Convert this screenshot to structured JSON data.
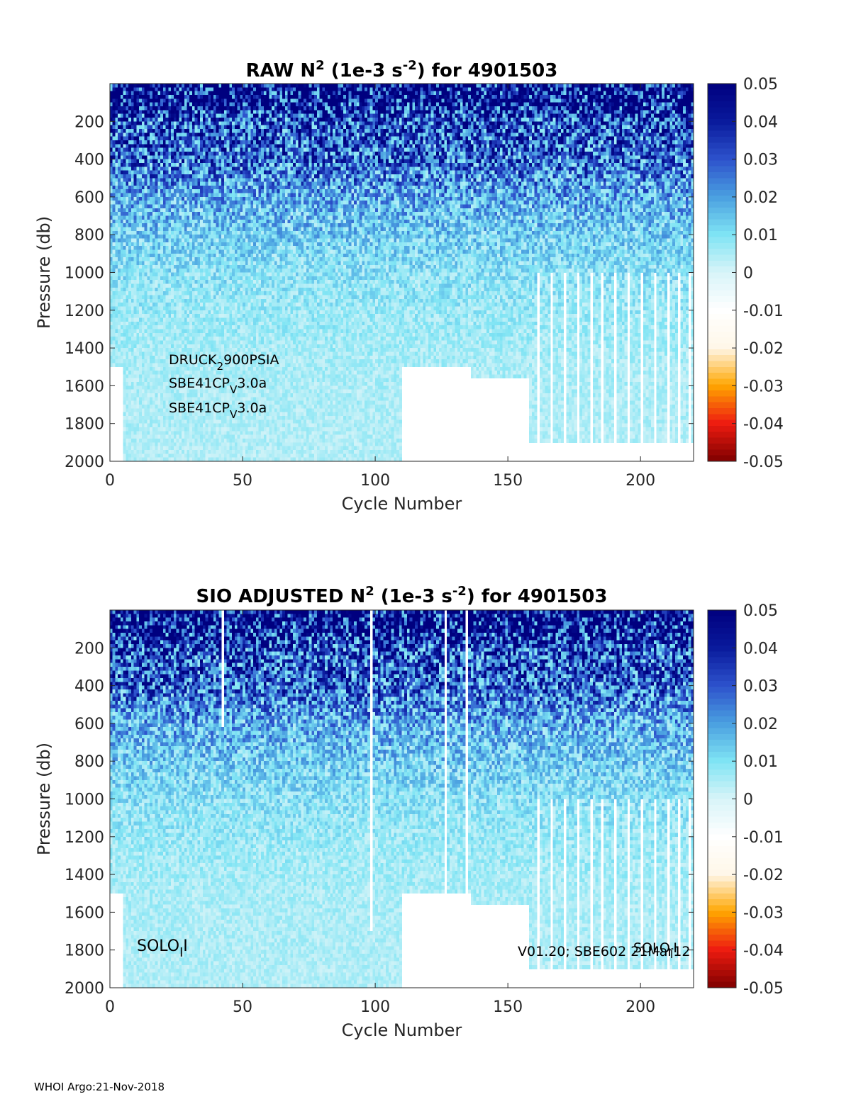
{
  "page": {
    "footer": "WHOI Argo:21-Nov-2018"
  },
  "colormap": {
    "stops": [
      "#7f0000",
      "#ee1b10",
      "#ffa600",
      "#fff7e8",
      "#ffffff",
      "#d8f4f8",
      "#7fe4f4",
      "#4a9fe0",
      "#2d52cc",
      "#091a9c",
      "#00007f"
    ]
  },
  "chart_data": [
    {
      "type": "heatmap",
      "title": "RAW N² (1e-3 s⁻²) for 4901503",
      "title_parts": {
        "pre": "RAW N",
        "sup1": "2",
        "mid": " (1e-3 s",
        "sup2": "-2",
        "post": ") for 4901503"
      },
      "xlabel": "Cycle Number",
      "ylabel": "Pressure (db)",
      "xlim": [
        0,
        220
      ],
      "ylim": [
        2000,
        0
      ],
      "x_ticks": [
        0,
        50,
        100,
        150,
        200
      ],
      "y_ticks": [
        200,
        400,
        600,
        800,
        1000,
        1200,
        1400,
        1600,
        1800,
        2000
      ],
      "colorbar": {
        "clim": [
          -0.05,
          0.05
        ],
        "ticks": [
          "0.05",
          "0.04",
          "0.03",
          "0.02",
          "0.01",
          "0",
          "-0.01",
          "-0.02",
          "-0.03",
          "-0.04",
          "-0.05"
        ]
      },
      "annotations": [
        {
          "base": "DRUCK",
          "sub": "2",
          "rest": "900PSIA"
        },
        {
          "base": "SBE41CP",
          "sub": "V",
          "rest": "3.0a"
        },
        {
          "base": "SBE41CP",
          "sub": "V",
          "rest": "3.0a"
        }
      ],
      "mean_profile": {
        "pressure": [
          0,
          100,
          200,
          400,
          600,
          800,
          1000,
          1200,
          1500,
          2000
        ],
        "n2": [
          0.052,
          0.048,
          0.032,
          0.028,
          0.018,
          0.013,
          0.009,
          0.007,
          0.005,
          0.004
        ]
      },
      "max_pressure_by_cycle_range": [
        {
          "cycles": [
            0,
            4
          ],
          "max_pressure": 1500
        },
        {
          "cycles": [
            5,
            109
          ],
          "max_pressure": 2000
        },
        {
          "cycles": [
            110,
            135
          ],
          "max_pressure": 1500
        },
        {
          "cycles": [
            136,
            157
          ],
          "max_pressure": 1550
        },
        {
          "cycles": [
            158,
            220
          ],
          "max_pressure": 1900
        }
      ],
      "gap_cycles_below_1000db": [
        161,
        166,
        171,
        176,
        181,
        185,
        190,
        195,
        200,
        205,
        210,
        214,
        218
      ]
    },
    {
      "type": "heatmap",
      "title": "SIO ADJUSTED N² (1e-3 s⁻²) for 4901503",
      "title_parts": {
        "pre": "SIO  ADJUSTED N",
        "sup1": "2",
        "mid": " (1e-3 s",
        "sup2": "-2",
        "post": ") for 4901503"
      },
      "xlabel": "Cycle Number",
      "ylabel": "Pressure (db)",
      "xlim": [
        0,
        220
      ],
      "ylim": [
        2000,
        0
      ],
      "x_ticks": [
        0,
        50,
        100,
        150,
        200
      ],
      "y_ticks": [
        200,
        400,
        600,
        800,
        1000,
        1200,
        1400,
        1600,
        1800,
        2000
      ],
      "colorbar": {
        "clim": [
          -0.05,
          0.05
        ],
        "ticks": [
          "0.05",
          "0.04",
          "0.03",
          "0.02",
          "0.01",
          "0",
          "-0.01",
          "-0.02",
          "-0.03",
          "-0.04",
          "-0.05"
        ]
      },
      "annotations": [
        {
          "base": "SOLO",
          "sub": "I",
          "rest": "I"
        },
        {
          "base": "V01.20; SBE602 21Mar12",
          "sub": "",
          "rest": ""
        },
        {
          "base": "SOLO",
          "sub": "I",
          "rest": "I"
        }
      ],
      "mean_profile": {
        "pressure": [
          0,
          100,
          200,
          400,
          600,
          800,
          1000,
          1200,
          1500,
          2000
        ],
        "n2": [
          0.052,
          0.048,
          0.032,
          0.028,
          0.018,
          0.013,
          0.009,
          0.007,
          0.005,
          0.004
        ]
      },
      "removed_cycles": [
        42,
        98,
        126,
        134
      ],
      "gap_cycles_below_1000db": [
        161,
        166,
        171,
        176,
        181,
        185,
        190,
        195,
        200,
        205,
        210,
        214,
        218
      ]
    }
  ]
}
